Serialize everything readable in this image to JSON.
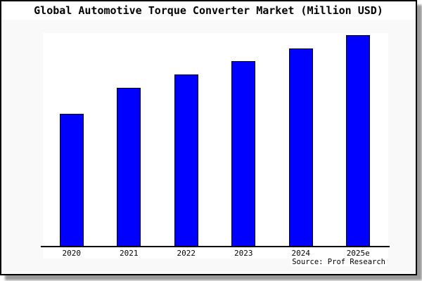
{
  "chart": {
    "source_credit": "Source: Prof Research"
  },
  "chart_data": {
    "type": "bar",
    "title": "Global Automotive Torque Converter Market (Million USD)",
    "categories": [
      "2020",
      "2021",
      "2022",
      "2023",
      "2024",
      "2025e"
    ],
    "values": [
      189,
      226,
      245,
      264,
      282,
      301
    ],
    "values_note": "relative magnitudes estimated from bar pixel heights; chart shows no y-axis tick labels or gridlines",
    "values_relative_to_max": [
      0.628,
      0.751,
      0.814,
      0.877,
      0.937,
      1.0
    ],
    "xlabel": "",
    "ylabel": "",
    "y_axis_labels_visible": false,
    "gridlines": false,
    "legend": "none",
    "annotations": [
      "Source: Prof Research"
    ],
    "bar_color": "#0000ff",
    "bar_border_color": "#000000",
    "axis_color": "#000000"
  },
  "colors": {
    "figure_background": "#f9f9f9",
    "plot_background": "#ffffff",
    "frame_border": "#000000",
    "frame_shadow": "#999999",
    "text": "#000000"
  }
}
